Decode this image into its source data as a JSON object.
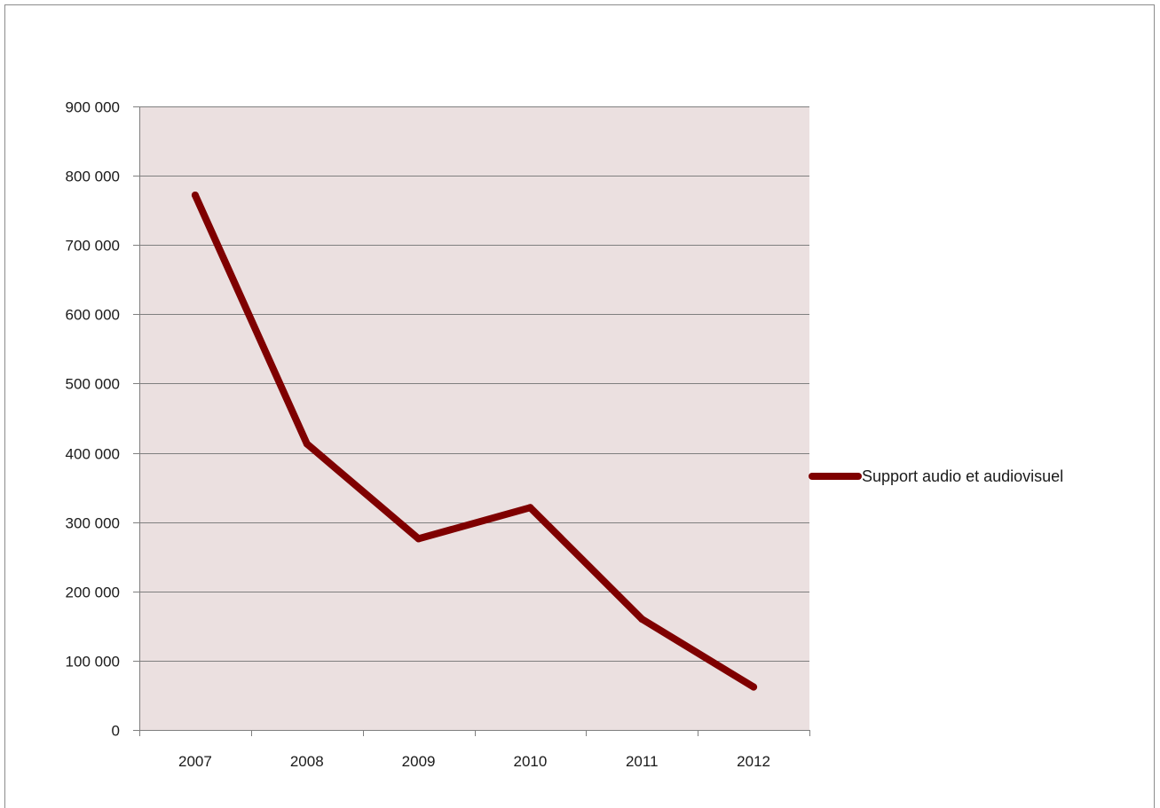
{
  "chart_data": {
    "type": "line",
    "title": "",
    "xlabel": "",
    "ylabel": "",
    "categories": [
      "2007",
      "2008",
      "2009",
      "2010",
      "2011",
      "2012"
    ],
    "series": [
      {
        "name": "Support audio et audiovisuel",
        "values": [
          772000,
          413000,
          276000,
          321000,
          160000,
          62000
        ],
        "color": "#7f0000"
      }
    ],
    "ylim": [
      0,
      900000
    ],
    "ytick_values": [
      0,
      100000,
      200000,
      300000,
      400000,
      500000,
      600000,
      700000,
      800000,
      900000
    ],
    "ytick_labels": [
      "0",
      "100 000",
      "200 000",
      "300 000",
      "400 000",
      "500 000",
      "600 000",
      "700 000",
      "800 000",
      "900 000"
    ],
    "grid": true,
    "legend_position": "right",
    "plot_background": "#ebe0e0",
    "gridline_color": "#7f7f7f"
  }
}
